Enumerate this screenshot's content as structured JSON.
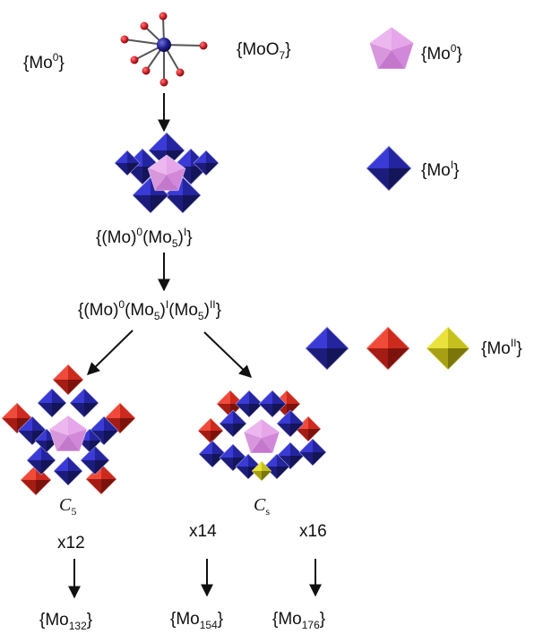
{
  "labels": {
    "mo0_left": {
      "base": "{Mo",
      "sup": "0",
      "tail": "}"
    },
    "moo7": {
      "base": "{MoO",
      "sub": "7",
      "tail": "}"
    },
    "mo0_legend": {
      "base": "{Mo",
      "sup": "0",
      "tail": "}"
    },
    "mo1_legend": {
      "base": "{Mo",
      "sup": "I",
      "tail": "}"
    },
    "mo2_legend": {
      "base": "{Mo",
      "sup": "II",
      "tail": "}"
    },
    "stage1": {
      "p1": "{(Mo)",
      "s1": "0",
      "p2": "(Mo",
      "b1": "5",
      "p3": ")",
      "s2": "I",
      "p4": "}"
    },
    "stage2": {
      "p1": "{(Mo)",
      "s1": "0",
      "p2": "(Mo",
      "b1": "5",
      "p3": ")",
      "s2": "I",
      "p4": "(Mo",
      "b2": "5",
      "p5": ")",
      "s3": "II",
      "p6": "}"
    },
    "c5": {
      "base": "C",
      "sub": "5"
    },
    "cs": {
      "base": "C",
      "sub": "s"
    },
    "x12": "x12",
    "x14": "x14",
    "x16": "x16",
    "mo132": {
      "base": "{Mo",
      "sub": "132",
      "tail": "}"
    },
    "mo154": {
      "base": "{Mo",
      "sub": "154",
      "tail": "}"
    },
    "mo176": {
      "base": "{Mo",
      "sub": "176",
      "tail": "}"
    }
  },
  "colors": {
    "pink_mo0": "#dc8ee0",
    "blue_mo1": "#2626b0",
    "red_mo2": "#d22a1e",
    "yellow_mo2": "#c8c21c",
    "atom_center": "#1c1c88",
    "atom_oxygen": "#cc1c22"
  }
}
